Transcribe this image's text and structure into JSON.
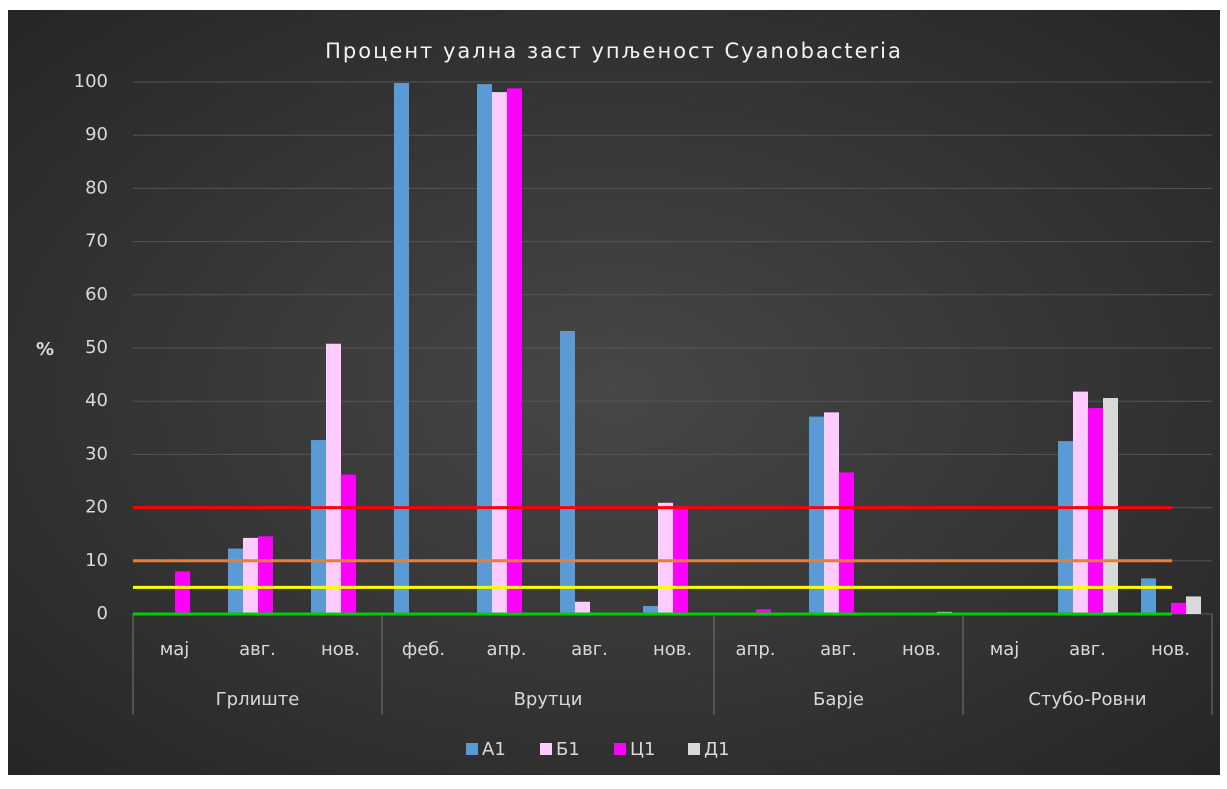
{
  "chart_data": {
    "type": "bar",
    "title": "Процент уална заст упљеност  Cyanobacteria",
    "y_label": "%",
    "groups": [
      {
        "name": "Грлиште",
        "categories": [
          "мај",
          "авг.",
          "нов."
        ]
      },
      {
        "name": "Врутци",
        "categories": [
          "феб.",
          "апр.",
          "авг.",
          "нов."
        ]
      },
      {
        "name": "Барје",
        "categories": [
          "апр.",
          "авг.",
          "нов."
        ]
      },
      {
        "name": "Стубо-Ровни",
        "categories": [
          "мај",
          "авг.",
          "нов."
        ]
      }
    ],
    "series": [
      {
        "name": "А1",
        "color": "#5b9bd5",
        "values": [
          0,
          12.3,
          32.7,
          99.8,
          99.6,
          53.2,
          1.5,
          0,
          37.1,
          0,
          0,
          32.5,
          6.7
        ]
      },
      {
        "name": "Б1",
        "color": "#ffccff",
        "values": [
          0,
          14.3,
          50.8,
          0,
          98.1,
          2.3,
          20.9,
          0,
          37.9,
          0,
          0,
          41.8,
          0
        ]
      },
      {
        "name": "Ц1",
        "color": "#ff00ff",
        "values": [
          8,
          14.6,
          26.2,
          0,
          98.8,
          0,
          20.3,
          0.9,
          26.6,
          0,
          0,
          38.7,
          2.1
        ]
      },
      {
        "name": "Д1",
        "color": "#d9d9d9",
        "values": [
          null,
          null,
          null,
          null,
          null,
          null,
          null,
          null,
          null,
          0.4,
          0,
          40.6,
          3.3
        ]
      }
    ],
    "reference_lines": [
      {
        "value": 20,
        "color": "#ff0000"
      },
      {
        "value": 10,
        "color": "#ed7d31"
      },
      {
        "value": 5,
        "color": "#ffff00"
      },
      {
        "value": 0,
        "color": "#00cc00"
      }
    ],
    "ylim": [
      0,
      100
    ],
    "yticks": [
      0,
      10,
      20,
      30,
      40,
      50,
      60,
      70,
      80,
      90,
      100
    ],
    "grid": true,
    "legend": "bottom"
  }
}
